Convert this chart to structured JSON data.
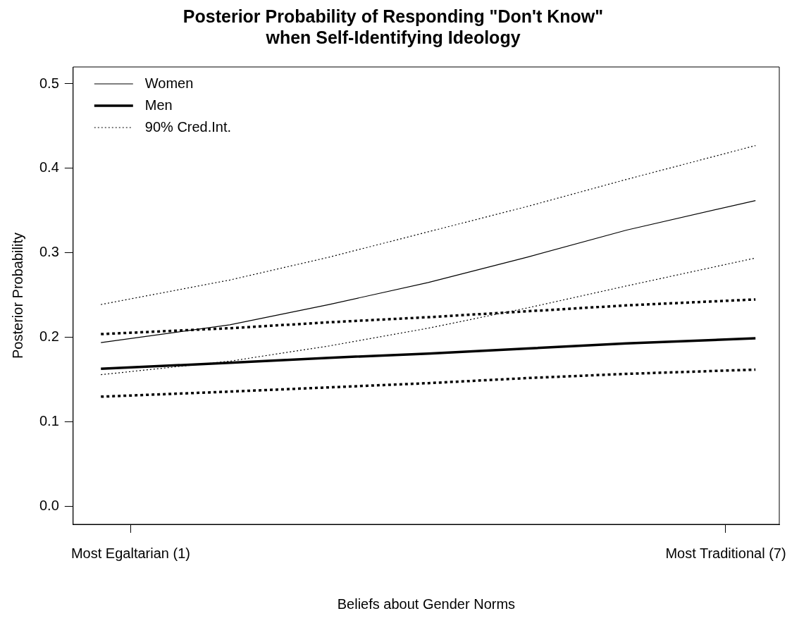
{
  "chart_data": {
    "type": "line",
    "title": "Posterior Probability of Responding \"Don't Know\"\nwhen Self-Identifying Ideology",
    "xlabel": "Beliefs about Gender Norms",
    "ylabel": "Posterior Probability",
    "x": [
      0.7,
      2,
      3,
      4,
      5,
      6,
      7.3
    ],
    "series": [
      {
        "name": "Women",
        "color": "#000000",
        "line_style": "solid",
        "values": [
          0.194,
          0.215,
          0.239,
          0.265,
          0.295,
          0.327,
          0.362
        ]
      },
      {
        "name": "Men",
        "color": "#000000",
        "line_style": "solid",
        "values": [
          0.163,
          0.17,
          0.176,
          0.181,
          0.187,
          0.193,
          0.199
        ]
      },
      {
        "name": "90% Cred.Int.",
        "color": "#000000",
        "line_style": "dotted",
        "values": [
          0.239,
          0.268,
          0.295,
          0.325,
          0.355,
          0.387,
          0.427
        ]
      },
      {
        "color": "#000000",
        "line_style": "dotted",
        "values": [
          0.156,
          0.172,
          0.19,
          0.211,
          0.235,
          0.261,
          0.294
        ]
      },
      {
        "color": "#000000",
        "line_style": "dotted",
        "values": [
          0.204,
          0.211,
          0.218,
          0.224,
          0.231,
          0.238,
          0.245
        ]
      },
      {
        "color": "#000000",
        "line_style": "dotted",
        "values": [
          0.13,
          0.136,
          0.141,
          0.146,
          0.152,
          0.157,
          0.162
        ]
      }
    ],
    "xlim": [
      0.42,
      7.54
    ],
    "xticks": [
      {
        "value": 1,
        "label": "Most Egaltarian (1)"
      },
      {
        "value": 7,
        "label": "Most Traditional (7)"
      }
    ],
    "ylim": [
      -0.021,
      0.52
    ],
    "yticks": [
      {
        "value": 0,
        "label": "0.0"
      },
      0.1,
      0.2,
      0.3,
      0.4,
      0.5
    ],
    "grid": false,
    "legend": "top left",
    "marker": "none"
  }
}
